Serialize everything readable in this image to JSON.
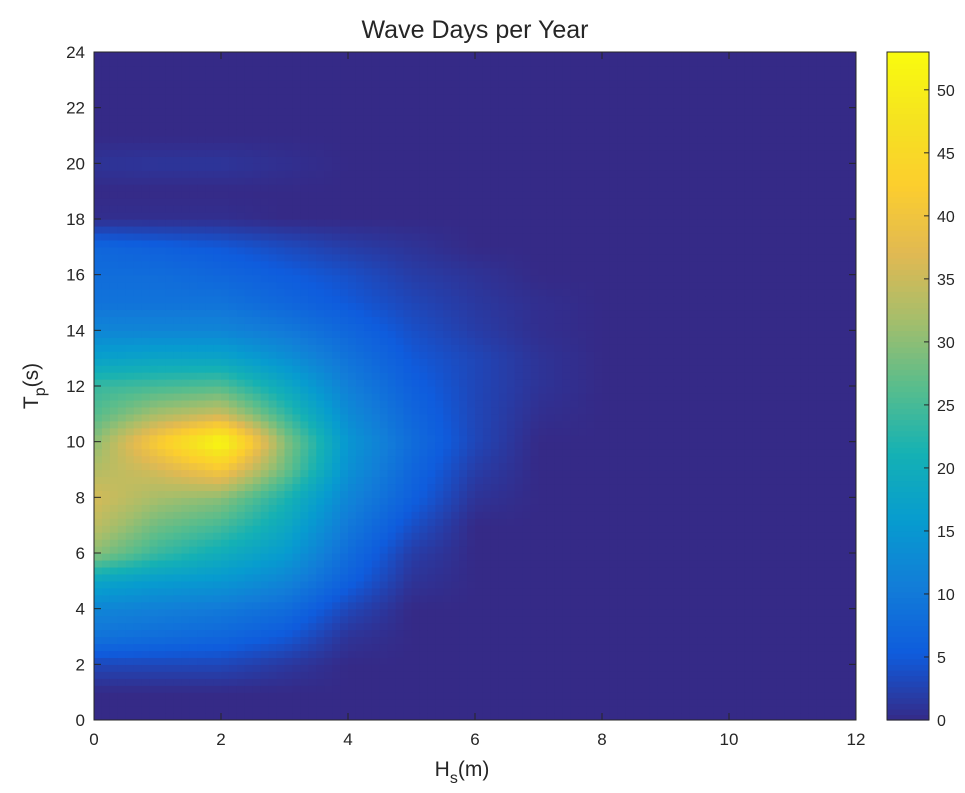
{
  "chart_data": {
    "type": "heatmap",
    "style": "filled-contour",
    "colormap": "parula",
    "title": "Wave Days per Year",
    "xlabel": {
      "base": "H",
      "sub": "s",
      "unit": "(m)"
    },
    "ylabel": {
      "base": "T",
      "sub": "p",
      "unit": "(s)"
    },
    "xlim": [
      0,
      12
    ],
    "ylim": [
      0,
      24
    ],
    "xticks": [
      0,
      2,
      4,
      6,
      8,
      10,
      12
    ],
    "yticks": [
      0,
      2,
      4,
      6,
      8,
      10,
      12,
      14,
      16,
      18,
      20,
      22,
      24
    ],
    "colorbar": {
      "min": 0,
      "max": 53,
      "ticks": [
        0,
        5,
        10,
        15,
        20,
        25,
        30,
        35,
        40,
        45,
        50
      ],
      "position": "right"
    },
    "x": [
      0,
      1,
      2,
      3,
      4,
      5,
      6,
      7,
      8,
      9,
      10,
      11,
      12
    ],
    "y": [
      0,
      1,
      2,
      3,
      4,
      5,
      6,
      7,
      8,
      9,
      10,
      11,
      12,
      13,
      14,
      15,
      16,
      17,
      18,
      19,
      20,
      21,
      22,
      23,
      24
    ],
    "z": [
      [
        0,
        0,
        0,
        0,
        0,
        0,
        0,
        0,
        0,
        0,
        0,
        0,
        0
      ],
      [
        0,
        0,
        0,
        0,
        0,
        0,
        0,
        0,
        0,
        0,
        0,
        0,
        0
      ],
      [
        3,
        3,
        3,
        1.5,
        0,
        0,
        0,
        0,
        0,
        0,
        0,
        0,
        0
      ],
      [
        9,
        8,
        7,
        5,
        1,
        0,
        0,
        0,
        0,
        0,
        0,
        0,
        0
      ],
      [
        12,
        11,
        10,
        8,
        3,
        0,
        0,
        0,
        0,
        0,
        0,
        0,
        0
      ],
      [
        18,
        16,
        15,
        12,
        6,
        1,
        0,
        0,
        0,
        0,
        0,
        0,
        0
      ],
      [
        30,
        24,
        20,
        16,
        8,
        2,
        0,
        0,
        0,
        0,
        0,
        0,
        0
      ],
      [
        34,
        28,
        25,
        19,
        10,
        4,
        0,
        0,
        0,
        0,
        0,
        0,
        0
      ],
      [
        36,
        32,
        30,
        22,
        12,
        6,
        1,
        0,
        0,
        0,
        0,
        0,
        0
      ],
      [
        33,
        36,
        41,
        28,
        14,
        7,
        2,
        0,
        0,
        0,
        0,
        0,
        0
      ],
      [
        30,
        42,
        53,
        30,
        15,
        8,
        3,
        0,
        0,
        0,
        0,
        0,
        0
      ],
      [
        26,
        32,
        35,
        24,
        13,
        7,
        3,
        0.5,
        0,
        0,
        0,
        0,
        0
      ],
      [
        24,
        25,
        26,
        19,
        11,
        6,
        3,
        1,
        0,
        0,
        0,
        0,
        0
      ],
      [
        17,
        18,
        18,
        14,
        9,
        5,
        3,
        1,
        0,
        0,
        0,
        0,
        0
      ],
      [
        12,
        12,
        12,
        10,
        7,
        4,
        2,
        0.5,
        0,
        0,
        0,
        0,
        0
      ],
      [
        9,
        9,
        9,
        7,
        5,
        3,
        1.5,
        0.5,
        0,
        0,
        0,
        0,
        0
      ],
      [
        8,
        8,
        7,
        5.5,
        4,
        2,
        1,
        0,
        0,
        0,
        0,
        0,
        0
      ],
      [
        7,
        6,
        5,
        3.5,
        2,
        1,
        0,
        0,
        0,
        0,
        0,
        0,
        0
      ],
      [
        0.5,
        0.5,
        0.5,
        0,
        0,
        0,
        0,
        0,
        0,
        0,
        0,
        0,
        0
      ],
      [
        0,
        0,
        0,
        0,
        0,
        0,
        0,
        0,
        0,
        0,
        0,
        0,
        0
      ],
      [
        1,
        1.2,
        1.2,
        0.6,
        0,
        0,
        0,
        0,
        0,
        0,
        0,
        0,
        0
      ],
      [
        0,
        0,
        0,
        0,
        0,
        0,
        0,
        0,
        0,
        0,
        0,
        0,
        0
      ],
      [
        0,
        0,
        0,
        0,
        0,
        0,
        0,
        0,
        0,
        0,
        0,
        0,
        0
      ],
      [
        0,
        0,
        0,
        0,
        0,
        0,
        0,
        0,
        0,
        0,
        0,
        0,
        0
      ],
      [
        0,
        0,
        0,
        0,
        0,
        0,
        0,
        0,
        0,
        0,
        0,
        0,
        0
      ]
    ]
  }
}
